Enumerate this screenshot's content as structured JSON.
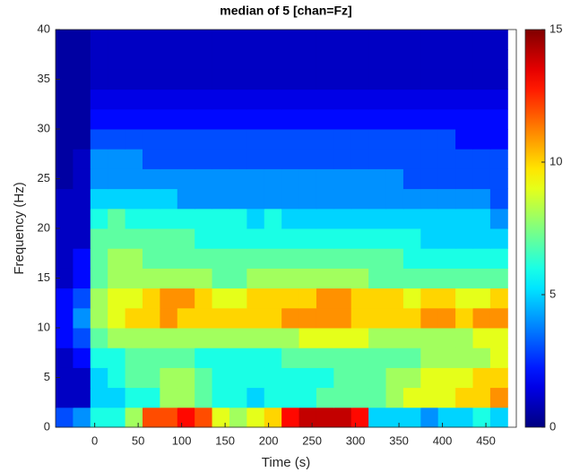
{
  "chart_data": {
    "type": "heatmap",
    "title": "median of 5 [chan=Fz]",
    "x_label": "Time (s)",
    "y_label": "Frequency (Hz)",
    "x": [
      -35,
      -15,
      5,
      25,
      45,
      65,
      85,
      105,
      125,
      145,
      165,
      185,
      205,
      225,
      245,
      265,
      285,
      305,
      325,
      345,
      365,
      385,
      405,
      425,
      445,
      465
    ],
    "y": [
      1,
      3,
      5,
      7,
      9,
      11,
      13,
      15,
      17,
      19,
      21,
      23,
      25,
      27,
      29,
      31,
      33,
      35,
      37,
      39
    ],
    "z": [
      [
        3,
        4,
        6,
        6,
        8,
        12,
        12,
        13,
        12,
        9,
        8,
        9,
        10,
        13,
        14,
        14,
        14,
        13,
        5,
        5,
        5,
        4,
        5,
        5,
        6,
        5
      ],
      [
        1,
        1,
        5,
        5,
        6,
        6,
        8,
        8,
        7,
        6,
        6,
        5,
        6,
        6,
        6,
        7,
        7,
        7,
        7,
        8,
        9,
        9,
        9,
        10,
        10,
        11
      ],
      [
        1,
        1,
        5,
        6,
        7,
        7,
        8,
        8,
        7,
        6,
        6,
        6,
        6,
        6,
        6,
        6,
        7,
        7,
        7,
        8,
        8,
        9,
        9,
        9,
        10,
        10
      ],
      [
        1,
        2,
        6,
        6,
        7,
        7,
        7,
        7,
        6,
        6,
        6,
        6,
        6,
        7,
        7,
        7,
        7,
        7,
        7,
        7,
        7,
        8,
        8,
        8,
        8,
        9
      ],
      [
        2,
        3,
        7,
        8,
        8,
        8,
        8,
        8,
        8,
        8,
        8,
        8,
        8,
        8,
        9,
        9,
        9,
        9,
        8,
        8,
        8,
        8,
        8,
        8,
        9,
        9
      ],
      [
        2,
        4,
        8,
        9,
        10,
        10,
        11,
        10,
        10,
        10,
        10,
        10,
        10,
        11,
        11,
        11,
        11,
        10,
        10,
        10,
        10,
        11,
        11,
        10,
        11,
        11
      ],
      [
        2,
        3,
        8,
        9,
        9,
        10,
        11,
        11,
        10,
        9,
        9,
        10,
        10,
        10,
        10,
        11,
        11,
        10,
        10,
        10,
        9,
        10,
        10,
        9,
        9,
        10
      ],
      [
        1,
        2,
        7,
        8,
        8,
        8,
        8,
        8,
        8,
        7,
        7,
        8,
        8,
        8,
        8,
        8,
        8,
        8,
        7,
        7,
        7,
        7,
        7,
        7,
        7,
        7
      ],
      [
        1,
        2,
        7,
        8,
        8,
        7,
        7,
        7,
        7,
        7,
        7,
        7,
        7,
        7,
        7,
        7,
        7,
        7,
        7,
        7,
        6,
        6,
        6,
        6,
        6,
        6
      ],
      [
        1,
        1,
        7,
        7,
        7,
        7,
        7,
        7,
        6,
        6,
        6,
        6,
        6,
        6,
        6,
        6,
        6,
        6,
        6,
        6,
        6,
        5,
        5,
        5,
        5,
        5
      ],
      [
        1,
        1,
        6,
        7,
        6,
        6,
        6,
        6,
        6,
        6,
        6,
        5,
        6,
        5,
        5,
        5,
        5,
        5,
        5,
        5,
        5,
        5,
        5,
        5,
        5,
        4
      ],
      [
        1,
        1,
        5,
        5,
        5,
        5,
        5,
        4,
        4,
        4,
        4,
        4,
        4,
        4,
        4,
        4,
        4,
        4,
        4,
        4,
        4,
        4,
        4,
        4,
        4,
        3
      ],
      [
        0.5,
        1,
        4,
        4,
        4,
        4,
        4,
        4,
        4,
        4,
        4,
        4,
        4,
        4,
        4,
        4,
        4,
        4,
        4,
        4,
        3,
        3,
        3,
        3,
        3,
        3
      ],
      [
        0.5,
        1,
        4,
        4,
        4,
        3,
        3,
        3,
        3,
        3,
        3,
        3,
        3,
        3,
        3,
        3,
        3,
        3,
        3,
        3,
        3,
        3,
        3,
        3,
        3,
        3
      ],
      [
        0.5,
        0.5,
        3,
        3,
        3,
        3,
        3,
        3,
        3,
        3,
        3,
        3,
        3,
        3,
        3,
        3,
        3,
        3,
        3,
        3,
        3,
        3,
        3,
        2,
        2,
        2
      ],
      [
        0.5,
        0.5,
        2,
        2,
        2,
        2,
        2,
        2,
        2,
        2,
        2,
        2,
        2,
        2,
        2,
        2,
        2,
        2,
        2,
        2,
        2,
        2,
        2,
        2,
        2,
        2
      ],
      [
        0.5,
        0.5,
        1.5,
        1.5,
        1.5,
        1.5,
        1.5,
        1.5,
        1.5,
        1.5,
        1.5,
        1.5,
        1.5,
        1.5,
        1.5,
        1.5,
        1.5,
        1.5,
        1.5,
        1.5,
        1.5,
        1.5,
        1.5,
        1.5,
        1.5,
        1.5
      ],
      [
        0.5,
        0.5,
        1,
        1,
        1,
        1,
        1,
        1,
        1,
        1,
        1,
        1,
        1,
        1,
        1,
        1,
        1,
        1,
        1,
        1,
        1,
        1,
        1,
        1,
        1,
        1
      ],
      [
        0.5,
        0.5,
        1,
        1,
        1,
        1,
        1,
        1,
        1,
        1,
        1,
        1,
        1,
        1,
        1,
        1,
        1,
        1,
        1,
        1,
        1,
        1,
        1,
        1,
        1,
        1
      ],
      [
        0.5,
        0.5,
        1,
        1,
        1,
        1,
        1,
        1,
        1,
        1,
        1,
        1,
        1,
        1,
        1,
        1,
        1,
        1,
        1,
        1,
        1,
        1,
        1,
        1,
        1,
        1
      ]
    ],
    "xlim": [
      -45,
      485
    ],
    "ylim": [
      0,
      40
    ],
    "xticks": [
      0,
      50,
      100,
      150,
      200,
      250,
      300,
      350,
      400,
      450
    ],
    "yticks": [
      0,
      5,
      10,
      15,
      20,
      25,
      30,
      35,
      40
    ],
    "clim": [
      0,
      15
    ],
    "cticks": [
      0,
      5,
      10,
      15
    ],
    "colormap": "jet"
  }
}
